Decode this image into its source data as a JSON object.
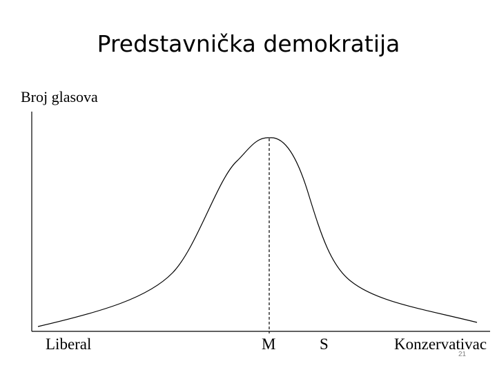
{
  "slide": {
    "title": "Predstavnička demokratija",
    "page_number": "21"
  },
  "diagram": {
    "y_axis_label": "Broj glasova",
    "x_labels": {
      "left_end": "Liberal",
      "median": "M",
      "s": "S",
      "right_end": "Konzervativac"
    },
    "curve": "bell-shaped voter distribution with dashed line at the median peak",
    "line_color": "#000000"
  }
}
